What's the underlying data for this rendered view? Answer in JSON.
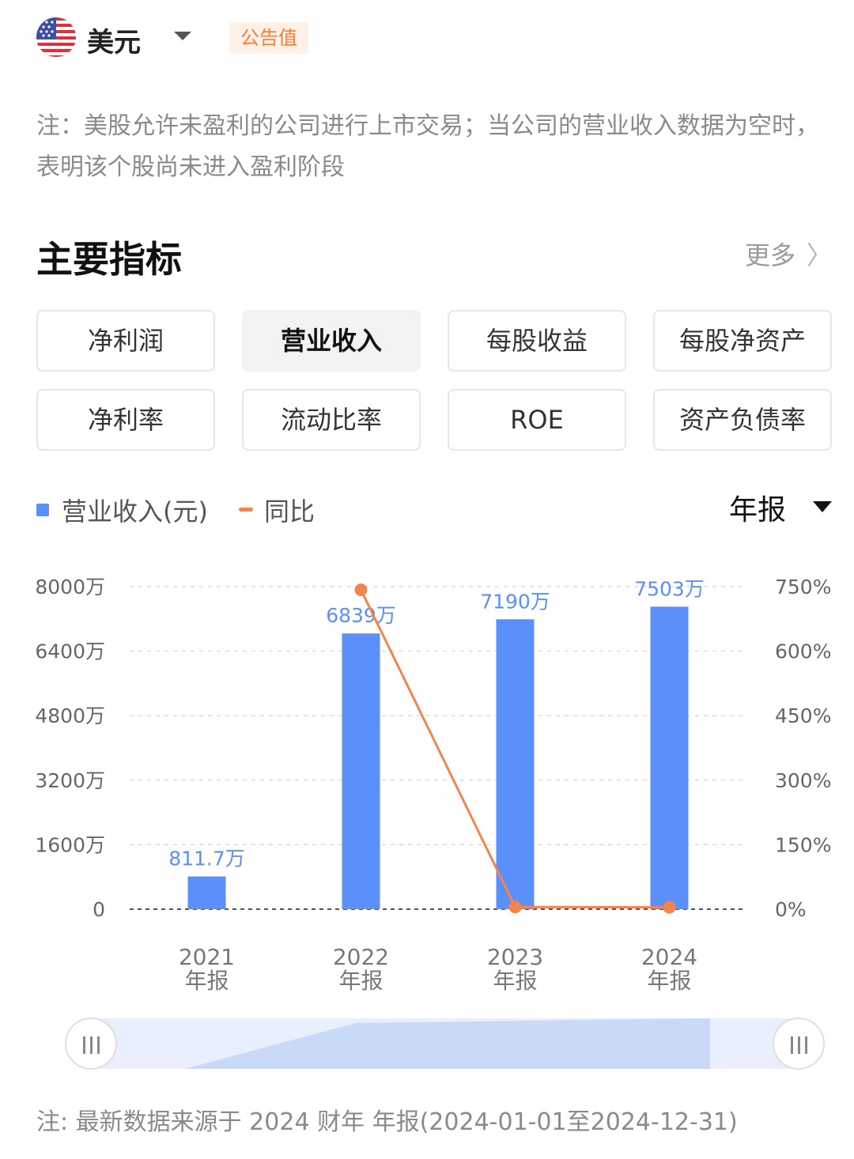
{
  "header": {
    "flag_icon": "us-flag-icon",
    "currency": "美元",
    "badge": "公告值"
  },
  "note_top": "注：美股允许未盈利的公司进行上市交易；当公司的营业收入数据为空时，表明该个股尚未进入盈利阶段",
  "section": {
    "title": "主要指标",
    "more": "更多"
  },
  "tabs": [
    {
      "label": "净利润",
      "active": false
    },
    {
      "label": "营业收入",
      "active": true
    },
    {
      "label": "每股收益",
      "active": false
    },
    {
      "label": "每股净资产",
      "active": false
    },
    {
      "label": "净利率",
      "active": false
    },
    {
      "label": "流动比率",
      "active": false
    },
    {
      "label": "ROE",
      "active": false
    },
    {
      "label": "资产负债率",
      "active": false
    }
  ],
  "legend": {
    "bar_label": "营业收入(元)",
    "line_label": "同比"
  },
  "period": "年报",
  "colors": {
    "bar": "#5b8ff9",
    "line": "#f5844c",
    "accent": "#ff7a33"
  },
  "chart_data": {
    "type": "bar",
    "categories": [
      [
        "2021",
        "年报"
      ],
      [
        "2022",
        "年报"
      ],
      [
        "2023",
        "年报"
      ],
      [
        "2024",
        "年报"
      ]
    ],
    "series": [
      {
        "name": "营业收入(元)",
        "type": "bar",
        "axis": "left",
        "values": [
          8117000,
          68390000,
          71900000,
          75030000
        ],
        "labels": [
          "811.7万",
          "6839万",
          "7190万",
          "7503万"
        ]
      },
      {
        "name": "同比",
        "type": "line",
        "axis": "right",
        "values": [
          null,
          742.5,
          5.1,
          4.4
        ]
      }
    ],
    "y_left": {
      "min": 0,
      "max": 80000000,
      "ticks": [
        "0",
        "1600万",
        "3200万",
        "4800万",
        "6400万",
        "8000万"
      ]
    },
    "y_right": {
      "min": 0,
      "max": 750,
      "unit": "%",
      "ticks": [
        "0%",
        "150%",
        "300%",
        "450%",
        "600%",
        "750%"
      ]
    },
    "grid": "dashed horizontal",
    "legend_position": "top-left"
  },
  "note_bottom": "注: 最新数据来源于 2024 财年 年报(2024-01-01至2024-12-31)"
}
